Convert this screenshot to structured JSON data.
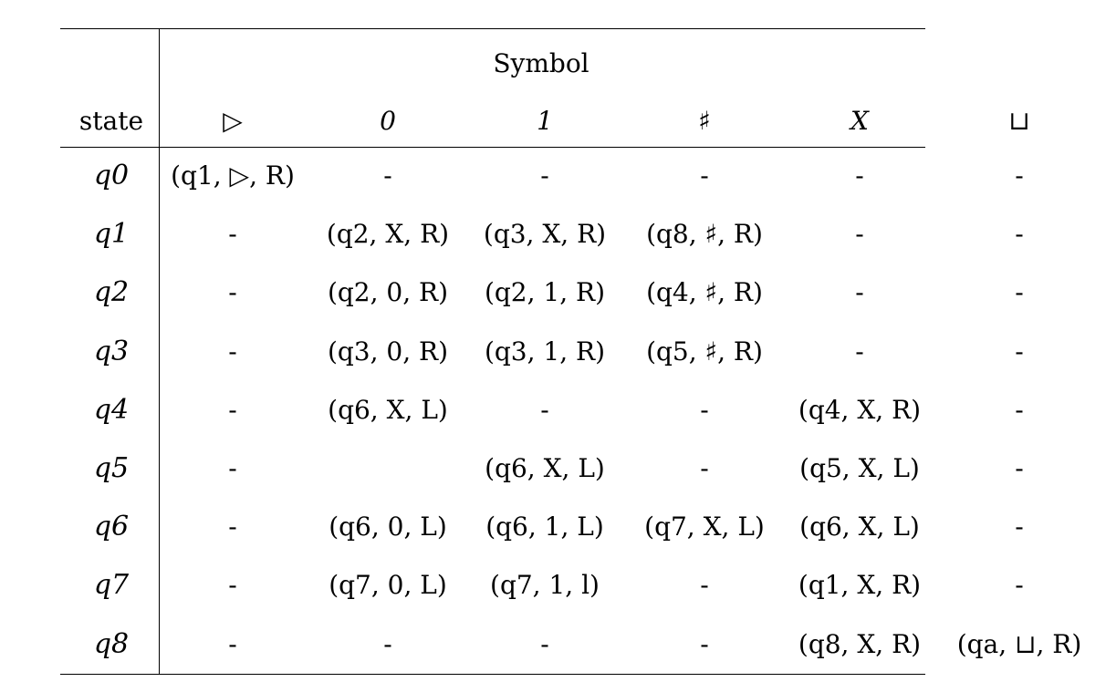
{
  "table": {
    "group_header": "Symbol",
    "row_header": "state",
    "symbols": [
      "▷",
      "0",
      "1",
      "♯",
      "X",
      "⊔"
    ],
    "symbol_italic": [
      false,
      true,
      true,
      false,
      true,
      false
    ],
    "rows": [
      {
        "state": "q0",
        "cells": [
          "(q1, ▷, R)",
          "-",
          "-",
          "-",
          "-",
          "-"
        ]
      },
      {
        "state": "q1",
        "cells": [
          "-",
          "(q2, X, R)",
          "(q3, X, R)",
          "(q8, ♯, R)",
          "-",
          "-"
        ]
      },
      {
        "state": "q2",
        "cells": [
          "-",
          "(q2, 0, R)",
          "(q2, 1, R)",
          "(q4, ♯, R)",
          "-",
          "-"
        ]
      },
      {
        "state": "q3",
        "cells": [
          "-",
          "(q3, 0, R)",
          "(q3, 1, R)",
          "(q5, ♯, R)",
          "-",
          "-"
        ]
      },
      {
        "state": "q4",
        "cells": [
          "-",
          "(q6, X, L)",
          "-",
          "-",
          "(q4, X, R)",
          "-"
        ]
      },
      {
        "state": "q5",
        "cells": [
          "-",
          "",
          "(q6, X, L)",
          "-",
          "(q5, X, L)",
          "-"
        ]
      },
      {
        "state": "q6",
        "cells": [
          "-",
          "(q6, 0, L)",
          "(q6, 1, L)",
          "(q7, X, L)",
          "(q6, X, L)",
          "-"
        ]
      },
      {
        "state": "q7",
        "cells": [
          "-",
          "(q7, 0, L)",
          "(q7, 1, l)",
          "-",
          "(q1, X, R)",
          "-"
        ]
      },
      {
        "state": "q8",
        "cells": [
          "-",
          "-",
          "-",
          "-",
          "(q8, X, R)",
          "(qa, ⊔, R)"
        ]
      }
    ]
  }
}
